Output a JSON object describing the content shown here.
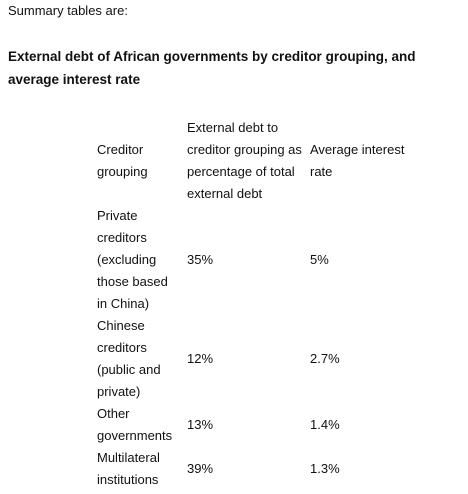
{
  "intro": "Summary tables are:",
  "heading": "External debt of African governments by creditor grouping, and average interest rate",
  "table": {
    "header": [
      "Creditor grouping",
      "External debt to creditor grouping as percentage of total external debt",
      "Average interest rate"
    ],
    "rows": [
      [
        "Private creditors (excluding those based in China)",
        "35%",
        "5%"
      ],
      [
        "Chinese creditors (public and private)",
        "12%",
        "2.7%"
      ],
      [
        "Other governments",
        "13%",
        "1.4%"
      ],
      [
        "Multilateral institutions",
        "39%",
        "1.3%"
      ]
    ]
  }
}
